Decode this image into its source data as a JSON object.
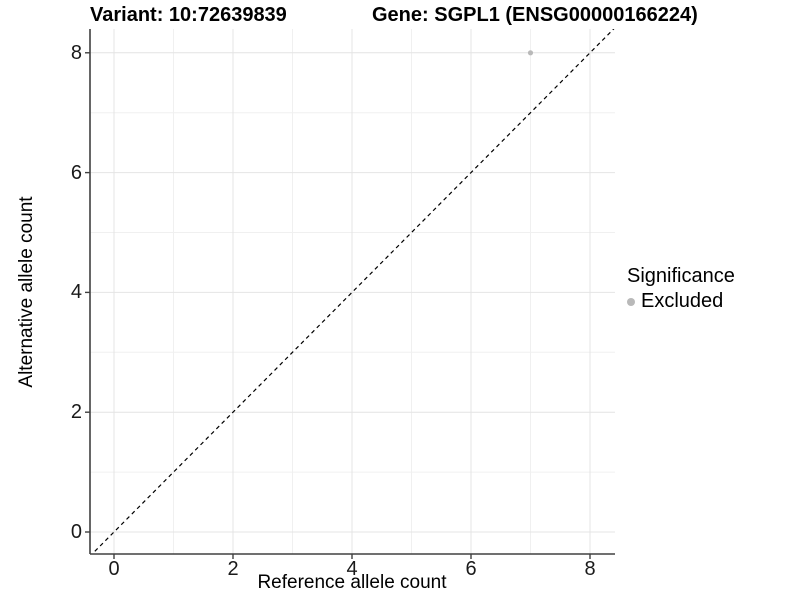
{
  "titles": {
    "left": "Variant: 10:72639839",
    "right": "Gene: SGPL1 (ENSG00000166224)"
  },
  "chart_data": {
    "type": "scatter",
    "xlabel": "Reference allele count",
    "ylabel": "Alternative allele count",
    "x_ticks": [
      0,
      2,
      4,
      6,
      8
    ],
    "y_ticks": [
      0,
      2,
      4,
      6,
      8
    ],
    "x_minor_ticks": [
      1,
      3,
      5,
      7
    ],
    "y_minor_ticks": [
      1,
      3,
      5,
      7
    ],
    "xlim": [
      -0.4,
      8.42
    ],
    "ylim": [
      -0.37,
      8.4
    ],
    "grid": true,
    "points": [
      {
        "x": 7,
        "y": 8,
        "series": "Excluded",
        "color": "#b9b9b9"
      }
    ],
    "reference_line": {
      "type": "identity",
      "style": "dashed",
      "color": "#000000",
      "from": [
        -0.5,
        -0.5
      ],
      "to": [
        8.6,
        8.6
      ]
    },
    "legend": {
      "title": "Significance",
      "position": "right",
      "items": [
        {
          "label": "Excluded",
          "color": "#b9b9b9"
        }
      ]
    },
    "colors": {
      "grid_major": "#e4e4e4",
      "grid_minor": "#f0f0f0",
      "axis_line": "#404040",
      "tick_mark": "#404040"
    }
  }
}
